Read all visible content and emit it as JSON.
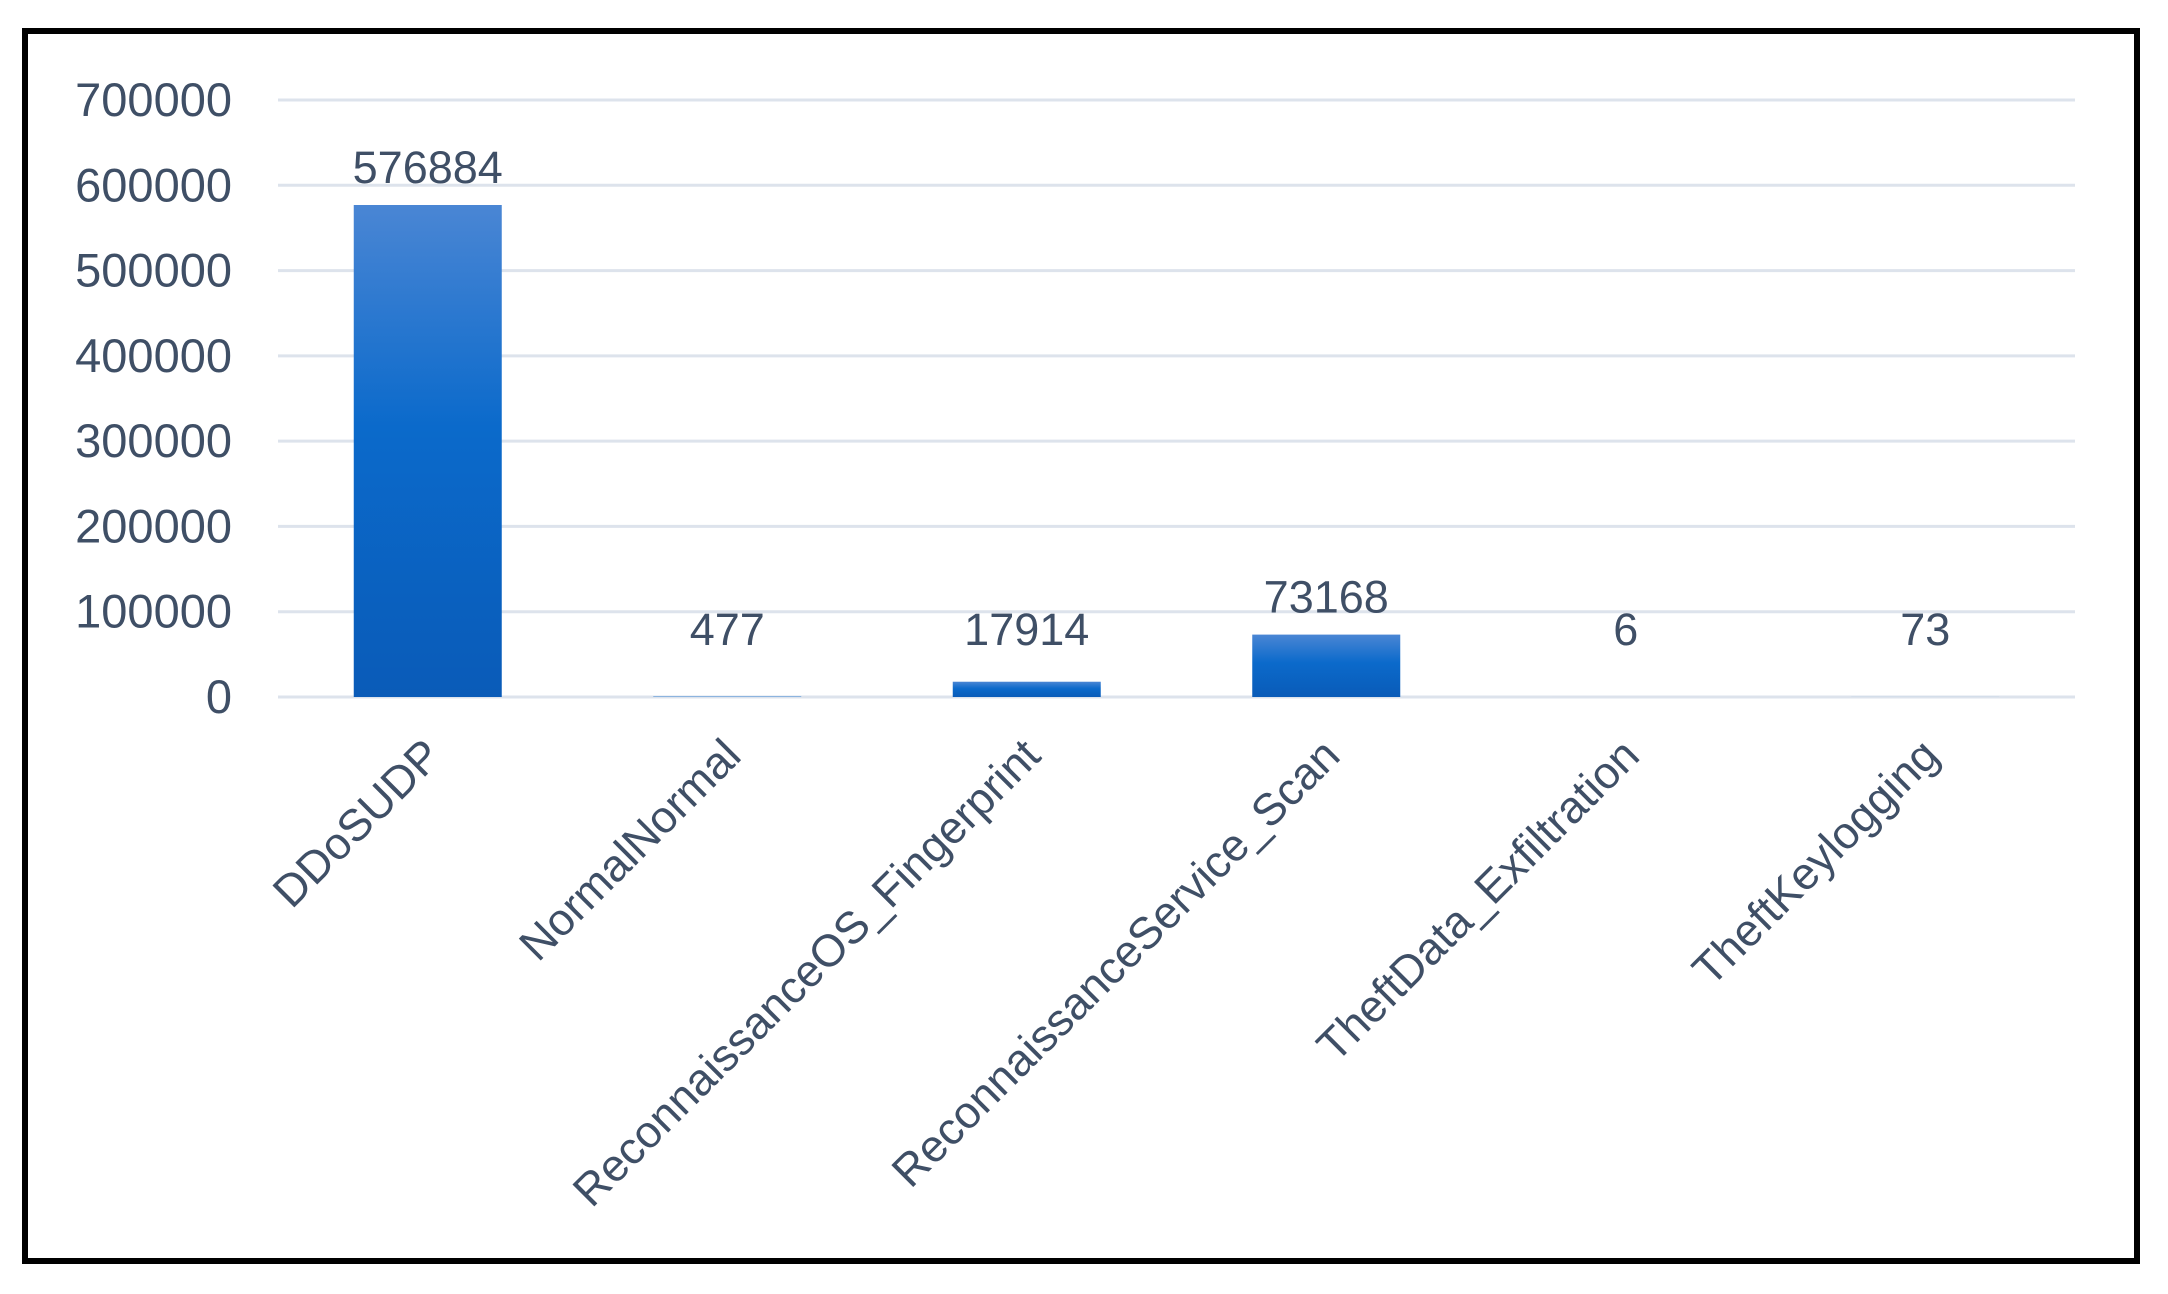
{
  "chart_data": {
    "type": "bar",
    "categories": [
      "DDoSUDP",
      "NormalNormal",
      "ReconnaissanceOS_Fingerprint",
      "ReconnaissanceService_Scan",
      "TheftData_Exfiltration",
      "TheftKeylogging"
    ],
    "values": [
      576884,
      477,
      17914,
      73168,
      6,
      73
    ],
    "data_labels": [
      "576884",
      "477",
      "17914",
      "73168",
      "6",
      "73"
    ],
    "yticks": [
      "700000",
      "600000",
      "500000",
      "400000",
      "300000",
      "200000",
      "100000",
      "0"
    ],
    "ylim": [
      0,
      700000
    ],
    "title": "",
    "xlabel": "",
    "ylabel": "",
    "grid": true,
    "legend": "none",
    "colors": {
      "bar_top": "#4a86d4",
      "bar_bottom": "#0a5bb8",
      "grid": "#dde3ec",
      "text": "#3f4f66"
    }
  }
}
